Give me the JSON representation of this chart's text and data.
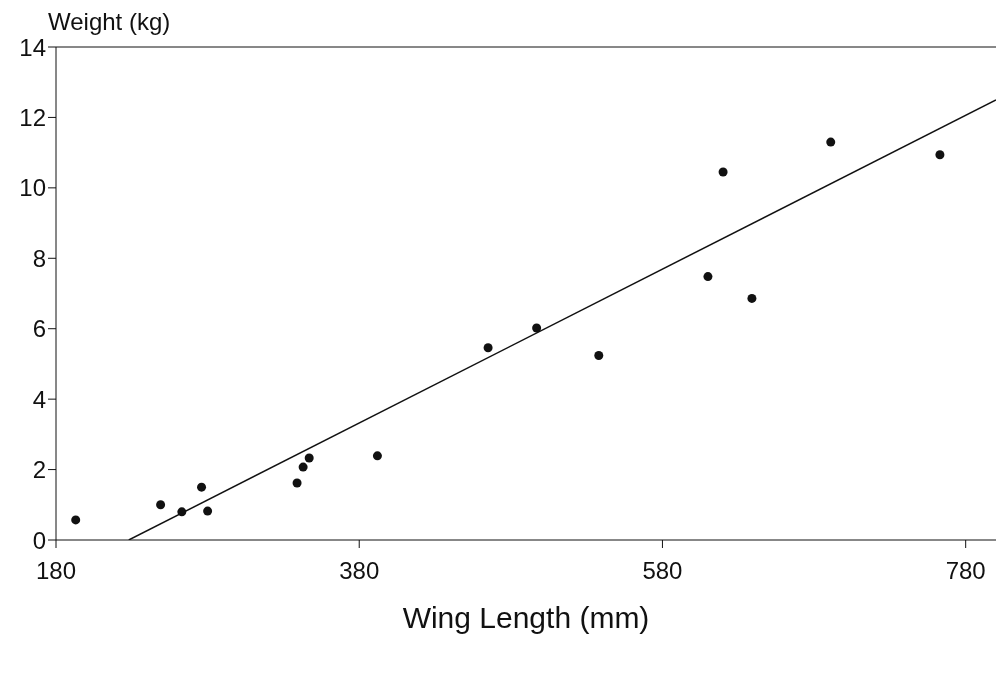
{
  "chart_data": {
    "type": "scatter",
    "xlabel": "Wing Length (mm)",
    "ylabel": "Weight (kg)",
    "xlim": [
      180,
      800
    ],
    "xticks": [
      180,
      380,
      580,
      780
    ],
    "ylim": [
      0,
      14
    ],
    "yticks": [
      0,
      2,
      4,
      6,
      8,
      10,
      12,
      14
    ],
    "grid": false,
    "series": [
      {
        "marker": "circle",
        "color": "#111111",
        "x": [
          193,
          249,
          263,
          276,
          280,
          339,
          343,
          347,
          392,
          465,
          497,
          538,
          610,
          620,
          639,
          691,
          763
        ],
        "values": [
          0.57,
          1.0,
          0.8,
          1.5,
          0.82,
          1.62,
          2.07,
          2.33,
          2.39,
          5.46,
          6.02,
          5.24,
          7.48,
          10.45,
          6.86,
          11.3,
          10.94
        ]
      },
      {
        "type": "line",
        "color": "#111111",
        "x": [
          228,
          800
        ],
        "values": [
          0,
          12.5
        ]
      }
    ]
  }
}
